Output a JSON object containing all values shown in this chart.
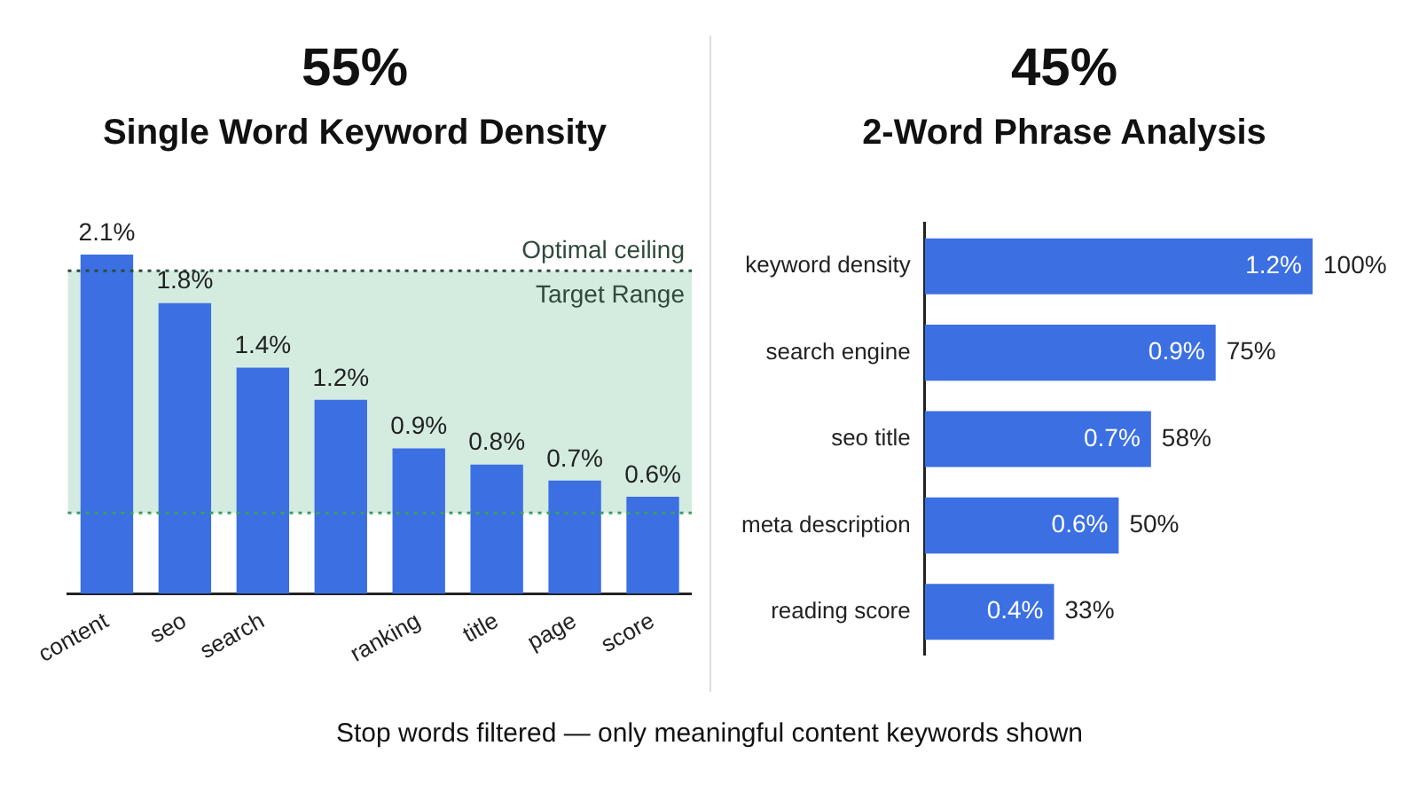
{
  "chart_data": [
    {
      "type": "bar",
      "title": "55%",
      "subtitle": "Single Word Keyword Density",
      "categories": [
        "content",
        "seo",
        "search",
        null,
        "ranking",
        "title",
        "page",
        "score"
      ],
      "values": [
        2.1,
        1.8,
        1.4,
        1.2,
        0.9,
        0.8,
        0.7,
        0.6
      ],
      "color": "#3b6fe2",
      "value_labels": [
        "2.1%",
        "1.8%",
        "1.4%",
        "1.2%",
        "0.9%",
        "0.8%",
        "0.7%",
        "0.6%"
      ],
      "bands": [
        {
          "axis": "y",
          "from": 0.5,
          "to": 2.0,
          "label": "Target Range",
          "color": "#d3ecdf"
        }
      ],
      "ref_lines": [
        {
          "axis": "y",
          "value": 2.0,
          "label": "Optimal ceiling",
          "color": "#2f4a3c",
          "line_style": "dotted"
        },
        {
          "axis": "y",
          "value": 0.5,
          "color": "#3f9d63",
          "line_style": "dotted"
        }
      ],
      "annotations": [
        "Stop words filtered — only meaningful content keywords shown"
      ]
    },
    {
      "type": "bar",
      "orientation": "horizontal",
      "title": "45%",
      "subtitle": "2-Word Phrase Analysis",
      "categories": [
        "keyword density",
        "search engine",
        "seo title",
        "meta description",
        "reading score"
      ],
      "values": [
        1.2,
        0.9,
        0.7,
        0.6,
        0.4
      ],
      "color": "#3b6fe2",
      "value_labels": [
        "1.2%",
        "0.9%",
        "0.7%",
        "0.6%",
        "0.4%"
      ],
      "annotations": [
        {
          "text": "100%",
          "x": 1.2,
          "y": "keyword density"
        },
        {
          "text": "75%",
          "x": 0.9,
          "y": "search engine"
        },
        {
          "text": "58%",
          "x": 0.7,
          "y": "seo title"
        },
        {
          "text": "50%",
          "x": 0.6,
          "y": "meta description"
        },
        {
          "text": "33%",
          "x": 0.4,
          "y": "reading score"
        }
      ]
    }
  ]
}
